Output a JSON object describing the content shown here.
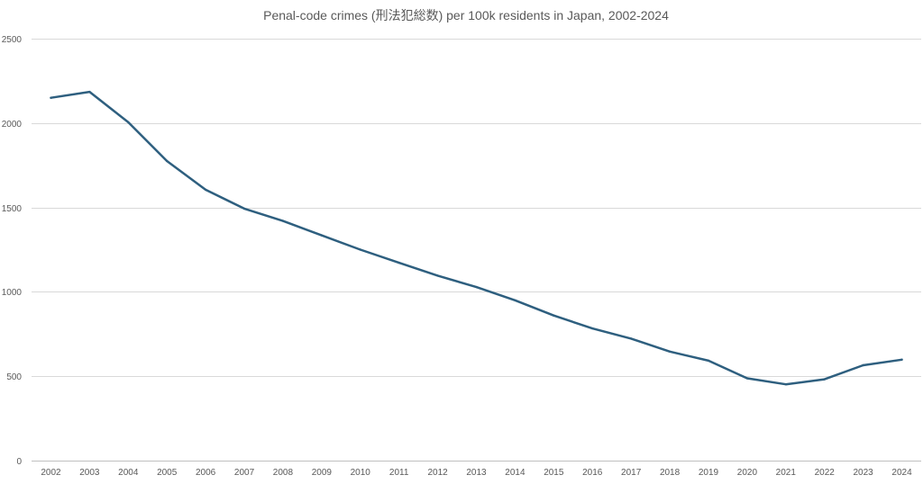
{
  "chart_data": {
    "type": "line",
    "title": "Penal-code crimes (刑法犯総数) per 100k residents in Japan, 2002-2024",
    "xlabel": "",
    "ylabel": "",
    "categories": [
      "2002",
      "2003",
      "2004",
      "2005",
      "2006",
      "2007",
      "2008",
      "2009",
      "2010",
      "2011",
      "2012",
      "2013",
      "2014",
      "2015",
      "2016",
      "2017",
      "2018",
      "2019",
      "2020",
      "2021",
      "2022",
      "2023",
      "2024"
    ],
    "series": [
      {
        "values": [
          2150,
          2185,
          2005,
          1775,
          1605,
          1493,
          1420,
          1335,
          1250,
          1172,
          1096,
          1028,
          950,
          860,
          783,
          723,
          646,
          592,
          488,
          452,
          482,
          565,
          598
        ],
        "color": "#2e5f7f"
      }
    ],
    "ylim": [
      0,
      2500
    ],
    "yticks": [
      0,
      500,
      1000,
      1500,
      2000,
      2500
    ],
    "grid": true,
    "legend": "none"
  }
}
